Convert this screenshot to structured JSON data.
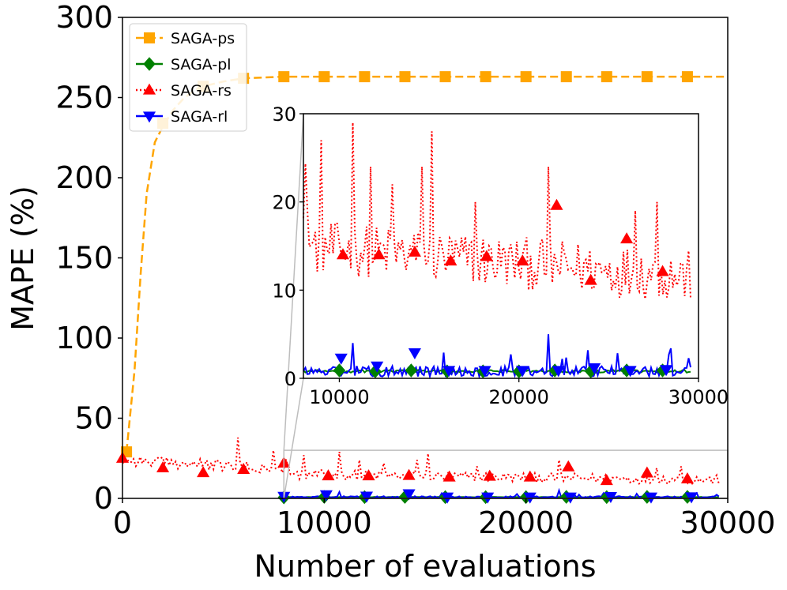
{
  "chart_data": {
    "type": "line",
    "xlabel": "Number of evaluations",
    "ylabel": "MAPE (%)",
    "xlim": [
      0,
      30000
    ],
    "ylim": [
      0,
      300
    ],
    "xticks": [
      0,
      10000,
      20000,
      30000
    ],
    "yticks": [
      0,
      50,
      100,
      150,
      200,
      250,
      300
    ],
    "legend_position": "top-left",
    "series": [
      {
        "name": "SAGA-ps",
        "color": "#FFA500",
        "style": "dashed",
        "marker": "square",
        "curve": [
          [
            200,
            29
          ],
          [
            600,
            80
          ],
          [
            900,
            140
          ],
          [
            1200,
            190
          ],
          [
            1600,
            222
          ],
          [
            2000,
            232
          ],
          [
            2500,
            242
          ],
          [
            3000,
            249
          ],
          [
            3500,
            254
          ],
          [
            4000,
            257
          ],
          [
            5000,
            260
          ],
          [
            6000,
            262
          ],
          [
            8000,
            263
          ],
          [
            30000,
            263
          ]
        ],
        "markers": [
          [
            200,
            29
          ],
          [
            2000,
            234
          ],
          [
            4000,
            257
          ],
          [
            6000,
            262
          ],
          [
            8000,
            263
          ],
          [
            10000,
            263
          ],
          [
            12000,
            263
          ],
          [
            14000,
            263
          ],
          [
            16000,
            263
          ],
          [
            18000,
            263
          ],
          [
            20000,
            263
          ],
          [
            22000,
            263
          ],
          [
            24000,
            263
          ],
          [
            26000,
            263
          ],
          [
            28000,
            263
          ]
        ]
      },
      {
        "name": "SAGA-pl",
        "color": "#008000",
        "style": "solid",
        "marker": "diamond",
        "markers": [
          [
            8000,
            0.6
          ],
          [
            10000,
            0.9
          ],
          [
            12000,
            0.8
          ],
          [
            14000,
            0.9
          ],
          [
            16000,
            0.8
          ],
          [
            18000,
            0.8
          ],
          [
            20000,
            0.8
          ],
          [
            22000,
            0.9
          ],
          [
            24000,
            0.8
          ],
          [
            26000,
            0.9
          ],
          [
            28000,
            0.9
          ]
        ]
      },
      {
        "name": "SAGA-rs",
        "color": "#FF0000",
        "style": "dotted",
        "marker": "triangle-up",
        "markers": [
          [
            0,
            25
          ],
          [
            2000,
            19
          ],
          [
            4000,
            16
          ],
          [
            6000,
            18
          ],
          [
            8000,
            22
          ],
          [
            10200,
            14
          ],
          [
            12200,
            14
          ],
          [
            14200,
            14.3
          ],
          [
            16200,
            13.3
          ],
          [
            18200,
            13.8
          ],
          [
            20200,
            13.3
          ],
          [
            22100,
            19.6
          ],
          [
            24000,
            11.1
          ],
          [
            26000,
            15.8
          ],
          [
            28000,
            12.1
          ]
        ]
      },
      {
        "name": "SAGA-rl",
        "color": "#0000FF",
        "style": "solid",
        "marker": "triangle-down",
        "markers": [
          [
            8000,
            1.3
          ],
          [
            10100,
            2.3
          ],
          [
            12100,
            1.4
          ],
          [
            14200,
            2.9
          ],
          [
            16100,
            0.9
          ],
          [
            18100,
            0.9
          ],
          [
            20200,
            0.9
          ],
          [
            22200,
            0.9
          ],
          [
            24200,
            1.2
          ],
          [
            26200,
            0.9
          ],
          [
            28200,
            1.0
          ]
        ]
      }
    ],
    "inset": {
      "xlim": [
        8000,
        30000
      ],
      "ylim": [
        0,
        30
      ],
      "xticks": [
        10000,
        20000,
        30000
      ],
      "yticks": [
        0,
        10,
        20,
        30
      ],
      "zoom_region": {
        "x": [
          8000,
          30000
        ],
        "y": [
          0,
          30
        ]
      }
    }
  }
}
